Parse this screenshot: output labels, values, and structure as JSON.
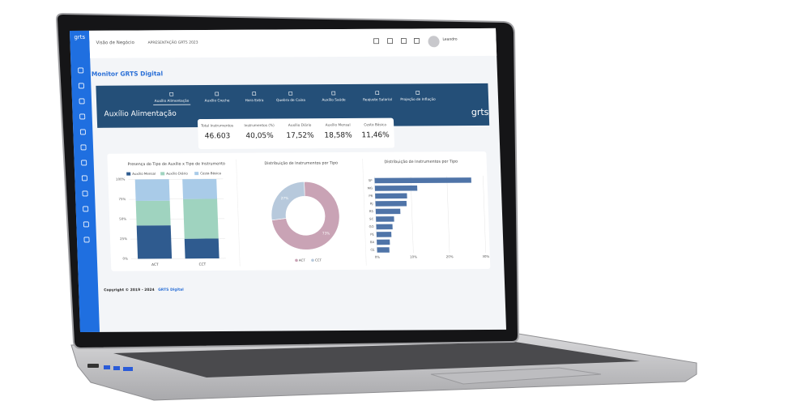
{
  "topbar": {
    "menu": "Visão de Negócio",
    "presentation": "APRESENTAÇÃO GRTS 2023",
    "user": "Leandro"
  },
  "page_title": "Monitor GRTS Digital",
  "nav": [
    "Auxílio Alimentação",
    "Auxílio Creche",
    "Hora Extra",
    "Quebra de Caixa",
    "Auxílio Saúde",
    "Reajuste Salarial",
    "Projeção de Inflação"
  ],
  "section_title": "Auxílio Alimentação",
  "logo": "grts",
  "kpis": [
    {
      "label": "Total Instrumentos",
      "value": "46.603"
    },
    {
      "label": "Instrumentos (%)",
      "value": "40,05%"
    },
    {
      "label": "Auxílio Diário",
      "value": "17,52%"
    },
    {
      "label": "Auxílio Mensal",
      "value": "18,58%"
    },
    {
      "label": "Cesta Básica",
      "value": "11,46%"
    }
  ],
  "charts": [
    {
      "type": "bar",
      "stacked": true,
      "title": "Presença do Tipo de Auxílio x Tipo de Instrumento",
      "categories": [
        "ACT",
        "CCT"
      ],
      "series": [
        {
          "name": "Auxílio Mensal",
          "color": "#2f5b8f",
          "values": [
            42,
            25
          ]
        },
        {
          "name": "Auxílio Diário",
          "color": "#9fd3bf",
          "values": [
            31,
            50
          ]
        },
        {
          "name": "Cesta Básica",
          "color": "#a9cbe8",
          "values": [
            27,
            25
          ]
        }
      ],
      "ylim": [
        0,
        100
      ],
      "yticks": [
        {
          "value": 0,
          "label": "0%"
        },
        {
          "value": 25,
          "label": "25%"
        },
        {
          "value": 50,
          "label": "50%"
        },
        {
          "value": 75,
          "label": "75%"
        },
        {
          "value": 100,
          "label": "100%"
        }
      ]
    },
    {
      "type": "pie",
      "title": "Distribuição de Instrumentos por Tipo",
      "categories": [
        "ACT",
        "CCT"
      ],
      "values": [
        73,
        27
      ],
      "value_labels": [
        "73%",
        "27%"
      ],
      "colors": [
        "#c9a3b5",
        "#b7c9dc"
      ]
    },
    {
      "type": "hbar",
      "title": "Distribuição de Instrumentos por Tipo",
      "categories": [
        "SP",
        "MG",
        "PR",
        "RJ",
        "RS",
        "SC",
        "GO",
        "PE",
        "BA",
        "CE"
      ],
      "values": [
        26.7,
        11.7,
        8.8,
        8.6,
        6.8,
        5.0,
        4.5,
        4.1,
        3.6,
        3.4
      ],
      "color": "#4f74a8",
      "xlim": [
        0,
        30
      ],
      "xticks": [
        {
          "value": 0,
          "label": "0%"
        },
        {
          "value": 10,
          "label": "10%"
        },
        {
          "value": 20,
          "label": "20%"
        },
        {
          "value": 30,
          "label": "30%"
        }
      ]
    }
  ],
  "footer": {
    "copyright": "Copyright © 2019 - 2024",
    "brand": "GRTS Digital"
  }
}
